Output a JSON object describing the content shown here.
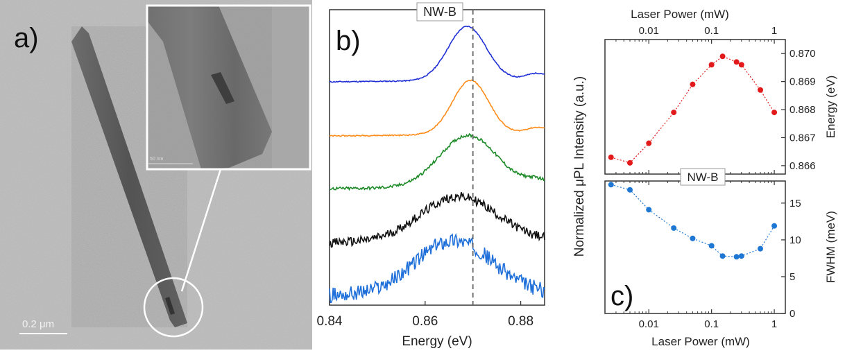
{
  "panel_a": {
    "label": "a)",
    "scale_bar": "0.2 μm",
    "inset_scale_bar": "50 nm"
  },
  "panel_b": {
    "label": "b)",
    "sample_label": "NW-B",
    "xlabel": "Energy (eV)",
    "ylabel": "Normalized μPL Intensity (a.u.)",
    "xticks": [
      "0.84",
      "0.86",
      "0.88"
    ],
    "dashed_line_energy": 0.87,
    "traces": [
      {
        "color": "#1f2fd6",
        "peak": 0.8688,
        "width": 0.004,
        "noise": 0.02
      },
      {
        "color": "#ff8c1a",
        "peak": 0.8695,
        "width": 0.0038,
        "noise": 0.02
      },
      {
        "color": "#1c8a26",
        "peak": 0.869,
        "width": 0.006,
        "noise": 0.06
      },
      {
        "color": "#111111",
        "peak": 0.867,
        "width": 0.008,
        "noise": 0.2
      },
      {
        "color": "#1e6fd9",
        "peak": 0.866,
        "width": 0.008,
        "noise": 0.28
      }
    ]
  },
  "chart_data": [
    {
      "type": "scatter",
      "title": "",
      "xlabel": "Laser Power (mW)",
      "ylabel": "Energy (eV)",
      "xscale": "log",
      "xlim": [
        0.002,
        1.5
      ],
      "ylim": [
        0.8657,
        0.8705
      ],
      "yticks": [
        "0.866",
        "0.867",
        "0.868",
        "0.869",
        "0.870"
      ],
      "xticks": [
        "0.01",
        "0.1",
        "1"
      ],
      "color": "#e31a1c",
      "x": [
        0.0025,
        0.005,
        0.01,
        0.025,
        0.05,
        0.1,
        0.15,
        0.25,
        0.3,
        0.6,
        1.0
      ],
      "y": [
        0.8663,
        0.8661,
        0.8668,
        0.8679,
        0.8689,
        0.8696,
        0.8699,
        0.8697,
        0.8696,
        0.8687,
        0.8679
      ]
    },
    {
      "type": "scatter",
      "title": "",
      "xlabel": "Laser Power (mW)",
      "ylabel": "FWHM (meV)",
      "xscale": "log",
      "xlim": [
        0.002,
        1.5
      ],
      "ylim": [
        0,
        18
      ],
      "yticks": [
        "0",
        "5",
        "10",
        "15"
      ],
      "xticks": [
        "0.01",
        "0.1",
        "1"
      ],
      "color": "#1f77d4",
      "x": [
        0.0025,
        0.005,
        0.01,
        0.025,
        0.05,
        0.1,
        0.15,
        0.25,
        0.3,
        0.6,
        1.0
      ],
      "y": [
        17.5,
        16.8,
        14.1,
        11.6,
        10.2,
        9.2,
        7.8,
        7.7,
        7.8,
        8.8,
        11.9
      ]
    }
  ],
  "panel_c": {
    "label": "c)",
    "sample_label": "NW-B",
    "top_xlabel": "Laser Power (mW)",
    "bottom_xlabel": "Laser Power (mW)"
  }
}
